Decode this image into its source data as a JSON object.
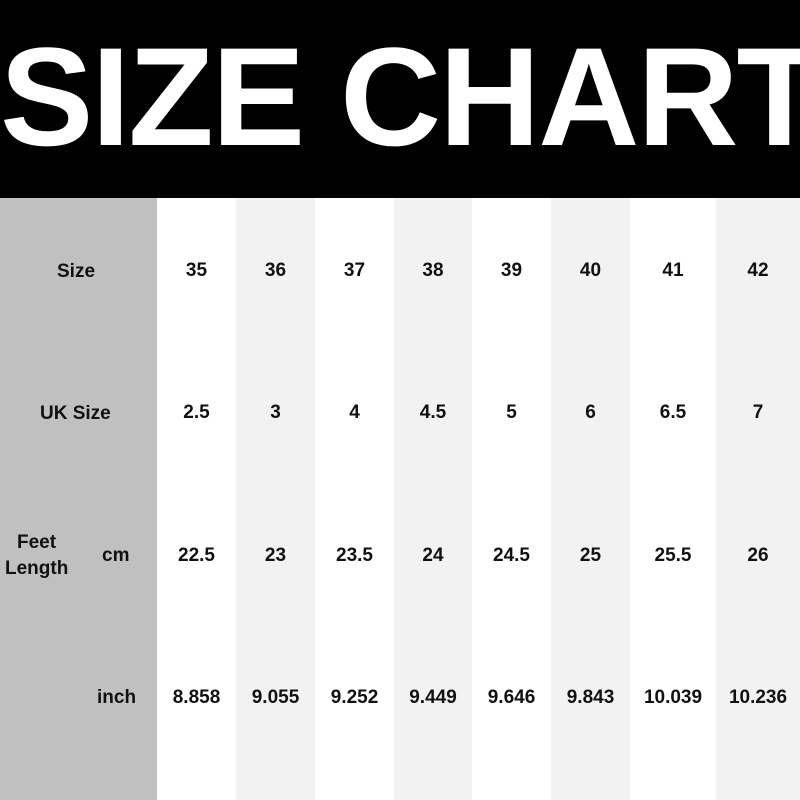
{
  "title": "SIZE CHART",
  "colors": {
    "header_bg": "#000000",
    "label_col_bg": "#c0c0c0",
    "alt_col_bg": "#f2f2f2",
    "col_bg": "#ffffff"
  },
  "rows": {
    "size_label": "Size",
    "uk_label": "UK Size",
    "feet_label_1": "Feet",
    "feet_label_2": "Length",
    "cm_label": "cm",
    "inch_label": "inch"
  },
  "sizes": [
    "35",
    "36",
    "37",
    "38",
    "39",
    "40",
    "41",
    "42"
  ],
  "uk_sizes": [
    "2.5",
    "3",
    "4",
    "4.5",
    "5",
    "6",
    "6.5",
    "7"
  ],
  "cm": [
    "22.5",
    "23",
    "23.5",
    "24",
    "24.5",
    "25",
    "25.5",
    "26"
  ],
  "inch": [
    "8.858",
    "9.055",
    "9.252",
    "9.449",
    "9.646",
    "9.843",
    "10.039",
    "10.236"
  ]
}
